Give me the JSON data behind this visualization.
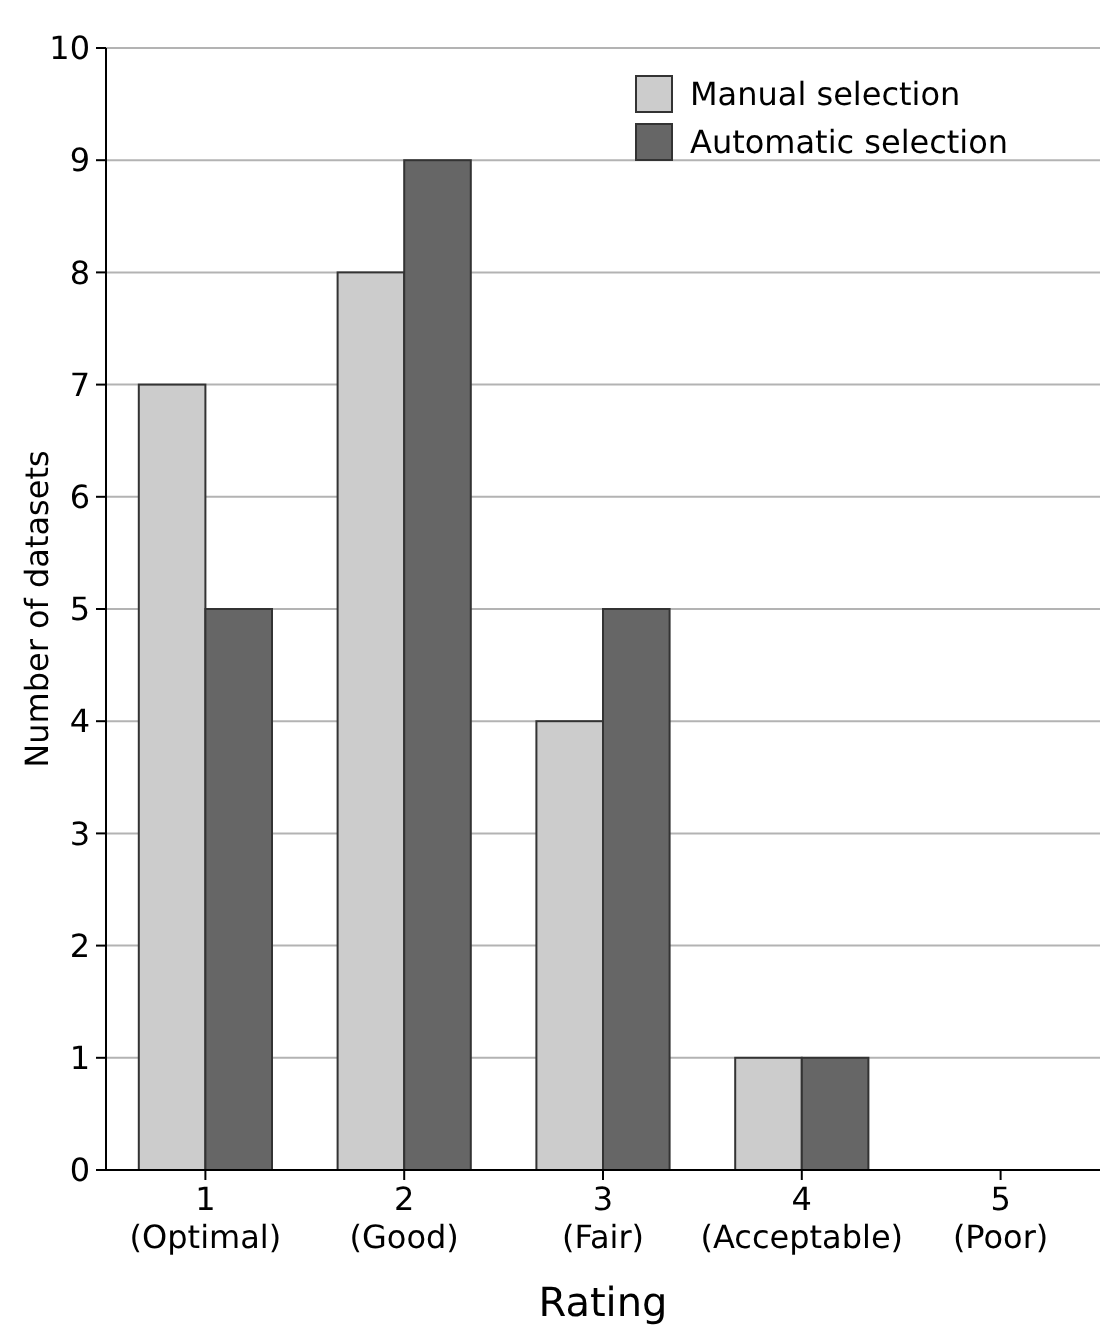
{
  "chart_data": {
    "type": "bar",
    "xlabel": "Rating",
    "ylabel": "Number of datasets",
    "categories": [
      "1\n(Optimal)",
      "2\n(Good)",
      "3\n(Fair)",
      "4\n(Acceptable)",
      "5\n(Poor)"
    ],
    "series": [
      {
        "name": "Manual selection",
        "color": "#cccccc",
        "values": [
          7,
          8,
          4,
          1,
          0
        ]
      },
      {
        "name": "Automatic selection",
        "color": "#666666",
        "values": [
          5,
          9,
          5,
          1,
          0
        ]
      }
    ],
    "ylim": [
      0,
      10
    ],
    "yticks": [
      0,
      1,
      2,
      3,
      4,
      5,
      6,
      7,
      8,
      9,
      10
    ],
    "grid": "y",
    "legend": "top right"
  }
}
